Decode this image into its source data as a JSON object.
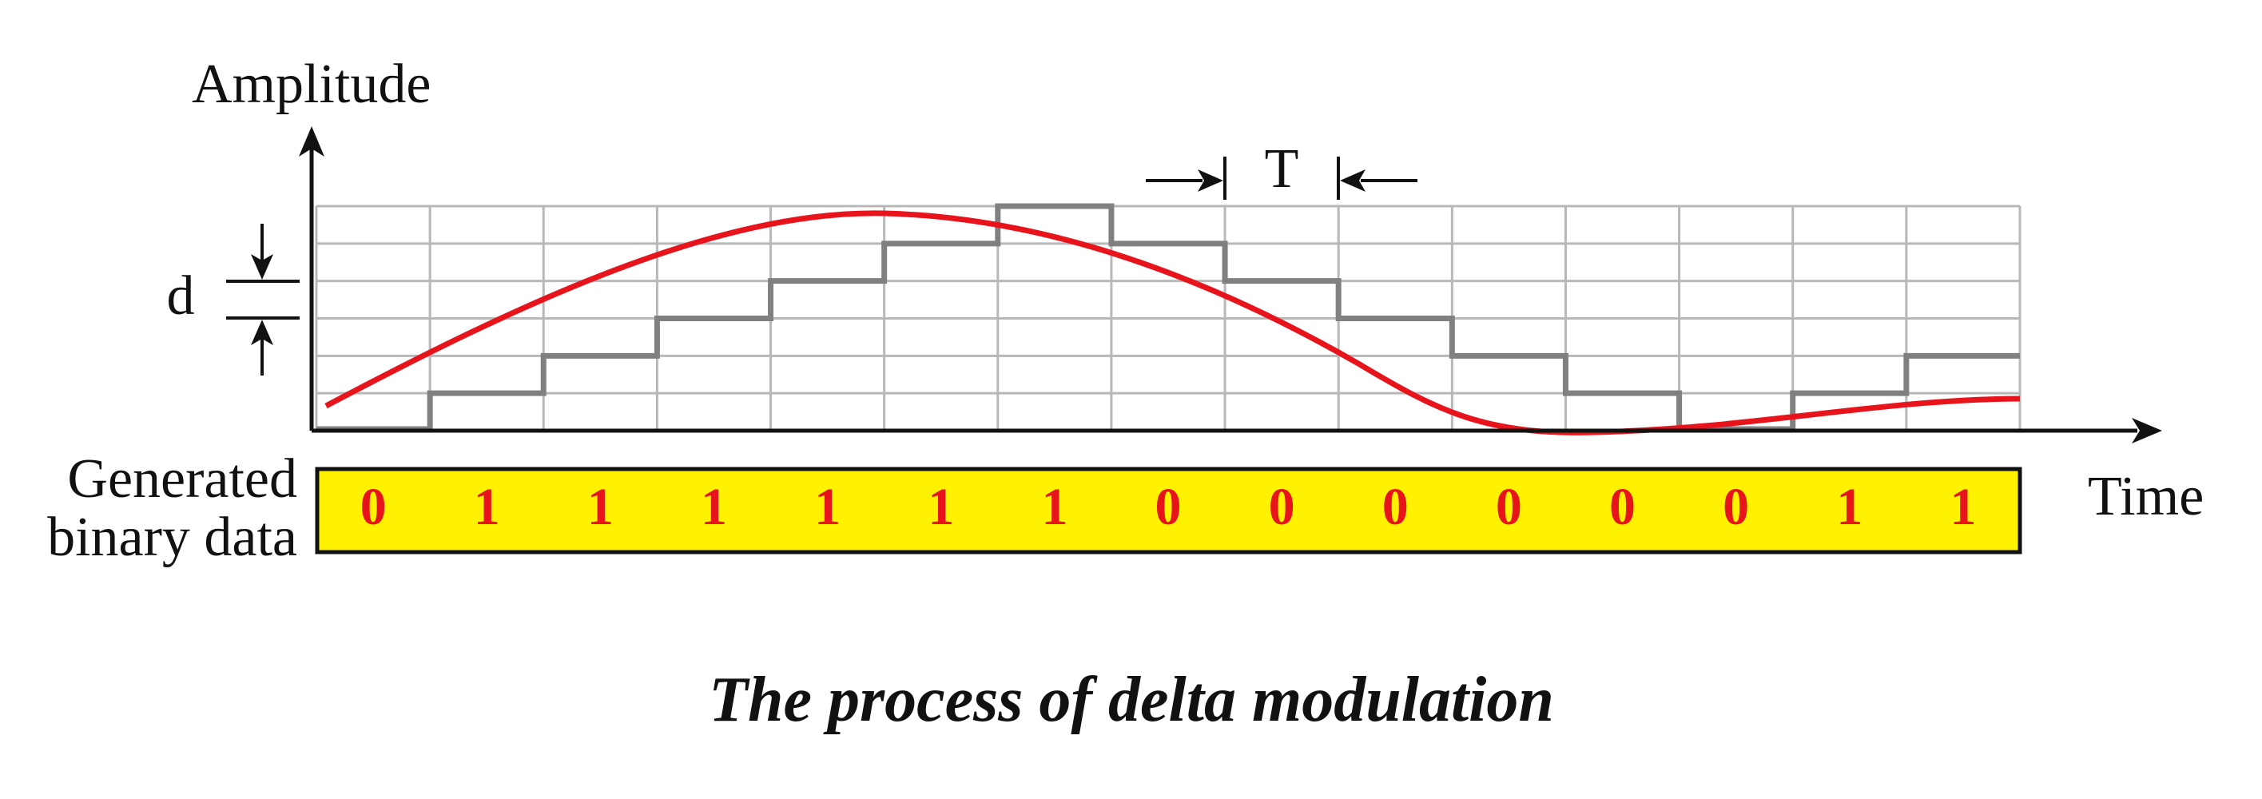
{
  "labels": {
    "y_axis": "Amplitude",
    "x_axis": "Time",
    "step_size": "d",
    "period": "T",
    "binary_label": [
      "Generated",
      "binary data"
    ]
  },
  "binary_data": [
    0,
    1,
    1,
    1,
    1,
    1,
    1,
    0,
    0,
    0,
    0,
    0,
    0,
    1,
    1
  ],
  "caption": "The process of delta modulation"
}
